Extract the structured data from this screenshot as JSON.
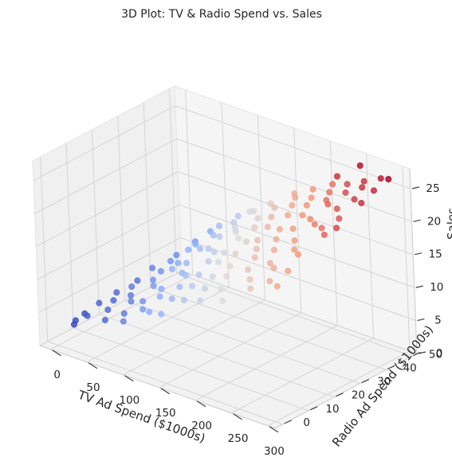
{
  "chart_data": {
    "type": "scatter",
    "projection": "3d",
    "title": "3D Plot: TV & Radio Spend vs. Sales",
    "xlabel": "TV Ad Spend ($1000s)",
    "ylabel": "Radio Ad Spend ($1000s)",
    "zlabel": "Sales",
    "xlim": [
      -15,
      310
    ],
    "ylim": [
      -3,
      52
    ],
    "zlim": [
      0,
      28
    ],
    "xticks": [
      0,
      50,
      100,
      150,
      200,
      250,
      300
    ],
    "yticks": [
      0,
      10,
      20,
      30,
      40,
      50
    ],
    "zticks": [
      0,
      5,
      10,
      15,
      20,
      25
    ],
    "grid": true,
    "colormap": "coolwarm",
    "color_by": "sales",
    "points": [
      [
        7,
        5,
        3
      ],
      [
        9,
        8,
        3.5
      ],
      [
        12,
        3,
        3
      ],
      [
        15,
        12,
        4.5
      ],
      [
        18,
        18,
        5
      ],
      [
        20,
        6,
        4
      ],
      [
        22,
        25,
        5.5
      ],
      [
        25,
        30,
        6.5
      ],
      [
        28,
        14,
        5
      ],
      [
        30,
        38,
        7
      ],
      [
        32,
        20,
        6
      ],
      [
        35,
        44,
        8
      ],
      [
        38,
        9,
        5
      ],
      [
        40,
        33,
        7.5
      ],
      [
        42,
        48,
        9
      ],
      [
        45,
        16,
        6
      ],
      [
        48,
        27,
        7.5
      ],
      [
        50,
        40,
        9
      ],
      [
        52,
        4,
        5
      ],
      [
        55,
        22,
        7.5
      ],
      [
        58,
        35,
        9.5
      ],
      [
        60,
        12,
        6.5
      ],
      [
        62,
        46,
        11
      ],
      [
        65,
        29,
        9
      ],
      [
        68,
        7,
        6
      ],
      [
        70,
        18,
        8
      ],
      [
        72,
        41,
        11
      ],
      [
        75,
        24,
        9.5
      ],
      [
        78,
        49,
        12.5
      ],
      [
        80,
        11,
        7.5
      ],
      [
        82,
        33,
        11
      ],
      [
        85,
        2,
        6.5
      ],
      [
        88,
        26,
        10.5
      ],
      [
        90,
        44,
        13
      ],
      [
        92,
        15,
        9
      ],
      [
        95,
        37,
        12.5
      ],
      [
        98,
        6,
        8
      ],
      [
        100,
        21,
        10.5
      ],
      [
        102,
        47,
        14.5
      ],
      [
        105,
        30,
        12.5
      ],
      [
        108,
        10,
        9.5
      ],
      [
        110,
        39,
        14
      ],
      [
        112,
        19,
        11
      ],
      [
        115,
        45,
        15.5
      ],
      [
        118,
        3,
        9
      ],
      [
        120,
        28,
        13
      ],
      [
        122,
        36,
        14.5
      ],
      [
        125,
        13,
        11
      ],
      [
        128,
        48,
        16.5
      ],
      [
        130,
        23,
        13
      ],
      [
        132,
        8,
        10.5
      ],
      [
        135,
        41,
        16
      ],
      [
        138,
        17,
        12.5
      ],
      [
        140,
        32,
        15
      ],
      [
        142,
        1,
        10
      ],
      [
        145,
        25,
        14.5
      ],
      [
        148,
        44,
        17.5
      ],
      [
        150,
        11,
        12.5
      ],
      [
        152,
        35,
        16.5
      ],
      [
        155,
        20,
        14.5
      ],
      [
        158,
        49,
        19
      ],
      [
        160,
        5,
        12
      ],
      [
        162,
        29,
        16
      ],
      [
        165,
        38,
        18
      ],
      [
        168,
        14,
        14
      ],
      [
        170,
        46,
        19.5
      ],
      [
        172,
        22,
        16
      ],
      [
        175,
        9,
        13.5
      ],
      [
        178,
        33,
        18
      ],
      [
        180,
        42,
        19.5
      ],
      [
        182,
        17,
        15.5
      ],
      [
        185,
        27,
        17.5
      ],
      [
        188,
        48,
        21
      ],
      [
        190,
        3,
        13.5
      ],
      [
        192,
        37,
        19.5
      ],
      [
        195,
        12,
        15.5
      ],
      [
        198,
        23,
        17.5
      ],
      [
        200,
        44,
        21
      ],
      [
        202,
        31,
        19
      ],
      [
        205,
        7,
        15
      ],
      [
        208,
        40,
        21
      ],
      [
        210,
        19,
        17.5
      ],
      [
        212,
        49,
        22.5
      ],
      [
        215,
        26,
        19
      ],
      [
        218,
        14,
        17
      ],
      [
        220,
        35,
        21
      ],
      [
        222,
        45,
        22.5
      ],
      [
        225,
        2,
        15
      ],
      [
        228,
        29,
        20.5
      ],
      [
        230,
        21,
        19
      ],
      [
        232,
        41,
        22.5
      ],
      [
        235,
        10,
        17
      ],
      [
        238,
        33,
        21.5
      ],
      [
        240,
        47,
        24
      ],
      [
        242,
        16,
        18.5
      ],
      [
        245,
        38,
        23
      ],
      [
        248,
        24,
        20.5
      ],
      [
        250,
        6,
        17
      ],
      [
        252,
        43,
        24
      ],
      [
        255,
        30,
        22
      ],
      [
        258,
        13,
        19
      ],
      [
        260,
        48,
        25
      ],
      [
        262,
        20,
        20.5
      ],
      [
        265,
        36,
        23.5
      ],
      [
        268,
        45,
        25
      ],
      [
        270,
        8,
        18.5
      ],
      [
        272,
        28,
        22.5
      ],
      [
        275,
        40,
        24.5
      ],
      [
        278,
        17,
        21
      ],
      [
        280,
        49,
        26
      ],
      [
        282,
        32,
        23.5
      ],
      [
        285,
        11,
        20
      ],
      [
        288,
        44,
        25.5
      ],
      [
        290,
        24,
        23
      ],
      [
        292,
        38,
        25
      ],
      [
        295,
        4,
        19.5
      ],
      [
        298,
        47,
        27
      ],
      [
        300,
        26,
        24
      ],
      [
        248,
        50,
        26.5
      ],
      [
        230,
        46,
        25
      ]
    ]
  }
}
